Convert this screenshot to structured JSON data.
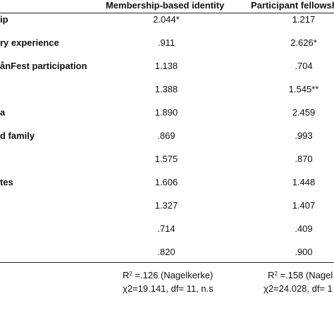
{
  "table": {
    "columns": [
      "Membership-based identity",
      "Participant fellowsh"
    ],
    "rows": [
      {
        "label": "ip",
        "v1": "2.044*",
        "v2": "1.217"
      },
      {
        "label": "ry experience",
        "v1": ".911",
        "v2": "2.626*"
      },
      {
        "label": "ånFest participation",
        "v1": "1.138",
        "v2": ".704"
      },
      {
        "label": "",
        "v1": "1.388",
        "v2": "1.545**"
      },
      {
        "label": "a",
        "v1": "1.890",
        "v2": "2.459"
      },
      {
        "label": "d family",
        "v1": ".869",
        "v2": ".993"
      },
      {
        "label": "",
        "v1": "1.575",
        "v2": ".870"
      },
      {
        "label": "tes",
        "v1": "1.606",
        "v2": "1.448"
      },
      {
        "label": "",
        "v1": "1.327",
        "v2": "1.407"
      },
      {
        "label": "",
        "v1": ".714",
        "v2": ".409"
      },
      {
        "label": "",
        "v1": ".820",
        "v2": ".900"
      }
    ],
    "footer": {
      "r2_1": "=.126 (Nagelkerke)",
      "r2_2": "=.158 (Nagel",
      "chi_1": "χ2=19.141, df= 11, n.s",
      "chi_2": "χ2=24.028, df= 1"
    }
  }
}
